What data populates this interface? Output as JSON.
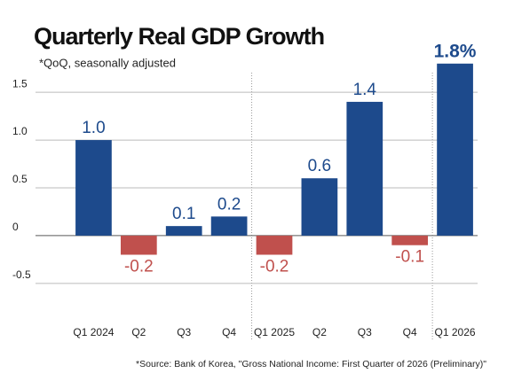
{
  "chart_data": {
    "type": "bar",
    "title": "Quarterly Real GDP Growth",
    "subtitle": "*QoQ, seasonally adjusted",
    "source": "*Source: Bank of Korea, \"Gross National Income: First Quarter of 2026 (Preliminary)\"",
    "categories": [
      "Q1 2024",
      "Q2",
      "Q3",
      "Q4",
      "Q1 2025",
      "Q2",
      "Q3",
      "Q4",
      "Q1 2026"
    ],
    "values": [
      1.0,
      -0.2,
      0.1,
      0.2,
      -0.2,
      0.6,
      1.4,
      -0.1,
      1.8
    ],
    "value_labels": [
      "1.0",
      "-0.2",
      "0.1",
      "0.2",
      "-0.2",
      "0.6",
      "1.4",
      "-0.1",
      "1.8%"
    ],
    "color": "#1d4a8c",
    "negative_color": "#c0504d",
    "ylim": [
      -0.9,
      1.9
    ],
    "yticks": [
      -0.5,
      0,
      0.5,
      {
        "value": 1,
        "label": "1.0"
      },
      1.5
    ],
    "grid": true
  }
}
